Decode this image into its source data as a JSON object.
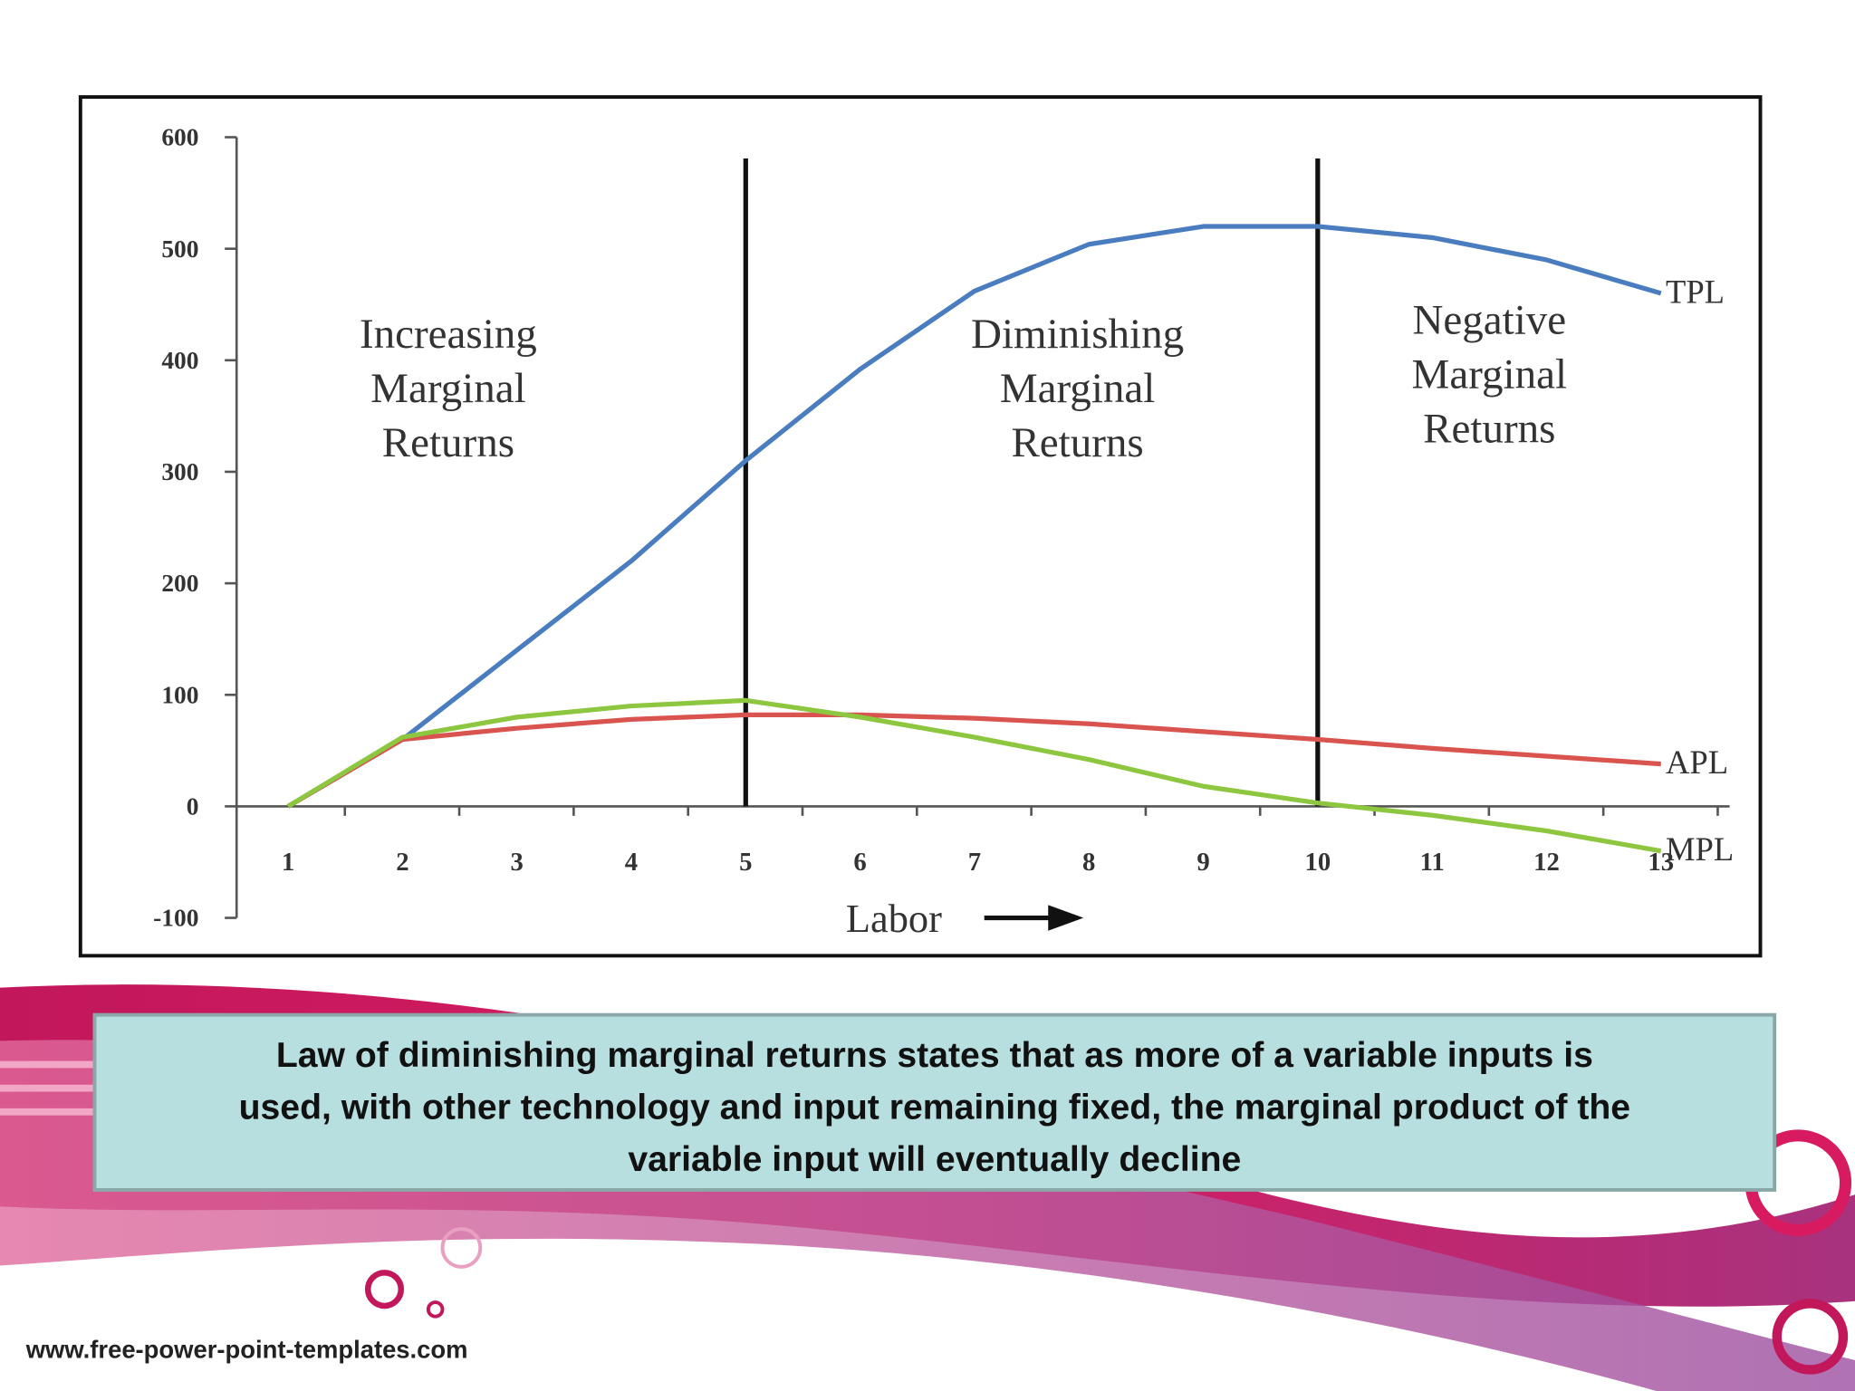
{
  "chart_data": {
    "type": "line",
    "xlabel": "Labor",
    "x": [
      1,
      2,
      3,
      4,
      5,
      6,
      7,
      8,
      9,
      10,
      11,
      12,
      13
    ],
    "xlim": [
      0.55,
      13.6
    ],
    "xticks": [
      1,
      2,
      3,
      4,
      5,
      6,
      7,
      8,
      9,
      10,
      11,
      12,
      13
    ],
    "ylim": [
      -100,
      600
    ],
    "yticks": [
      -100,
      0,
      100,
      200,
      300,
      400,
      500,
      600
    ],
    "grid": false,
    "series": [
      {
        "name": "TPL",
        "color": "#4a7cc0",
        "values": [
          0,
          60,
          140,
          220,
          310,
          392,
          462,
          504,
          520,
          520,
          510,
          490,
          460
        ]
      },
      {
        "name": "APL",
        "color": "#d9534f",
        "values": [
          0,
          60,
          70,
          78,
          82,
          82,
          79,
          74,
          67,
          60,
          52,
          45,
          38
        ]
      },
      {
        "name": "MPL",
        "color": "#8dc63f",
        "values": [
          0,
          62,
          80,
          90,
          95,
          80,
          62,
          42,
          18,
          3,
          -8,
          -22,
          -40
        ]
      }
    ],
    "dividers": [
      5,
      10
    ],
    "annotations": [
      {
        "x": 2.4,
        "lines": [
          "Increasing",
          "Marginal",
          "Returns"
        ]
      },
      {
        "x": 7.9,
        "lines": [
          "Diminishing",
          "Marginal",
          "Returns"
        ]
      },
      {
        "x": 11.5,
        "lines": [
          "Negative",
          "Marginal",
          "Returns"
        ]
      }
    ]
  },
  "caption": {
    "lines": [
      "Law of diminishing marginal returns states that as more of a variable inputs is",
      "used, with other technology and input remaining fixed, the marginal product of the",
      "variable input will eventually decline"
    ]
  },
  "footer": "www.free-power-point-templates.com"
}
